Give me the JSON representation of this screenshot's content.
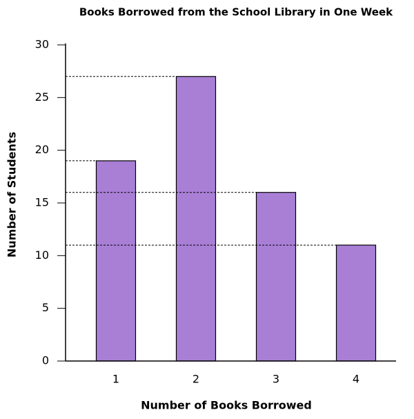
{
  "chart_data": {
    "type": "bar",
    "title": "Books Borrowed from the School Library in One Week",
    "x_label": "Number of Books Borrowed",
    "y_label": "Number of Students",
    "categories": [
      "1",
      "2",
      "3",
      "4"
    ],
    "values": [
      19,
      27,
      16,
      11
    ],
    "color": "#a97fd6",
    "ylim": [
      0,
      30
    ],
    "yticks": [
      0,
      5,
      10,
      15,
      20,
      25,
      30
    ],
    "grid": false,
    "reference_lines": true
  }
}
